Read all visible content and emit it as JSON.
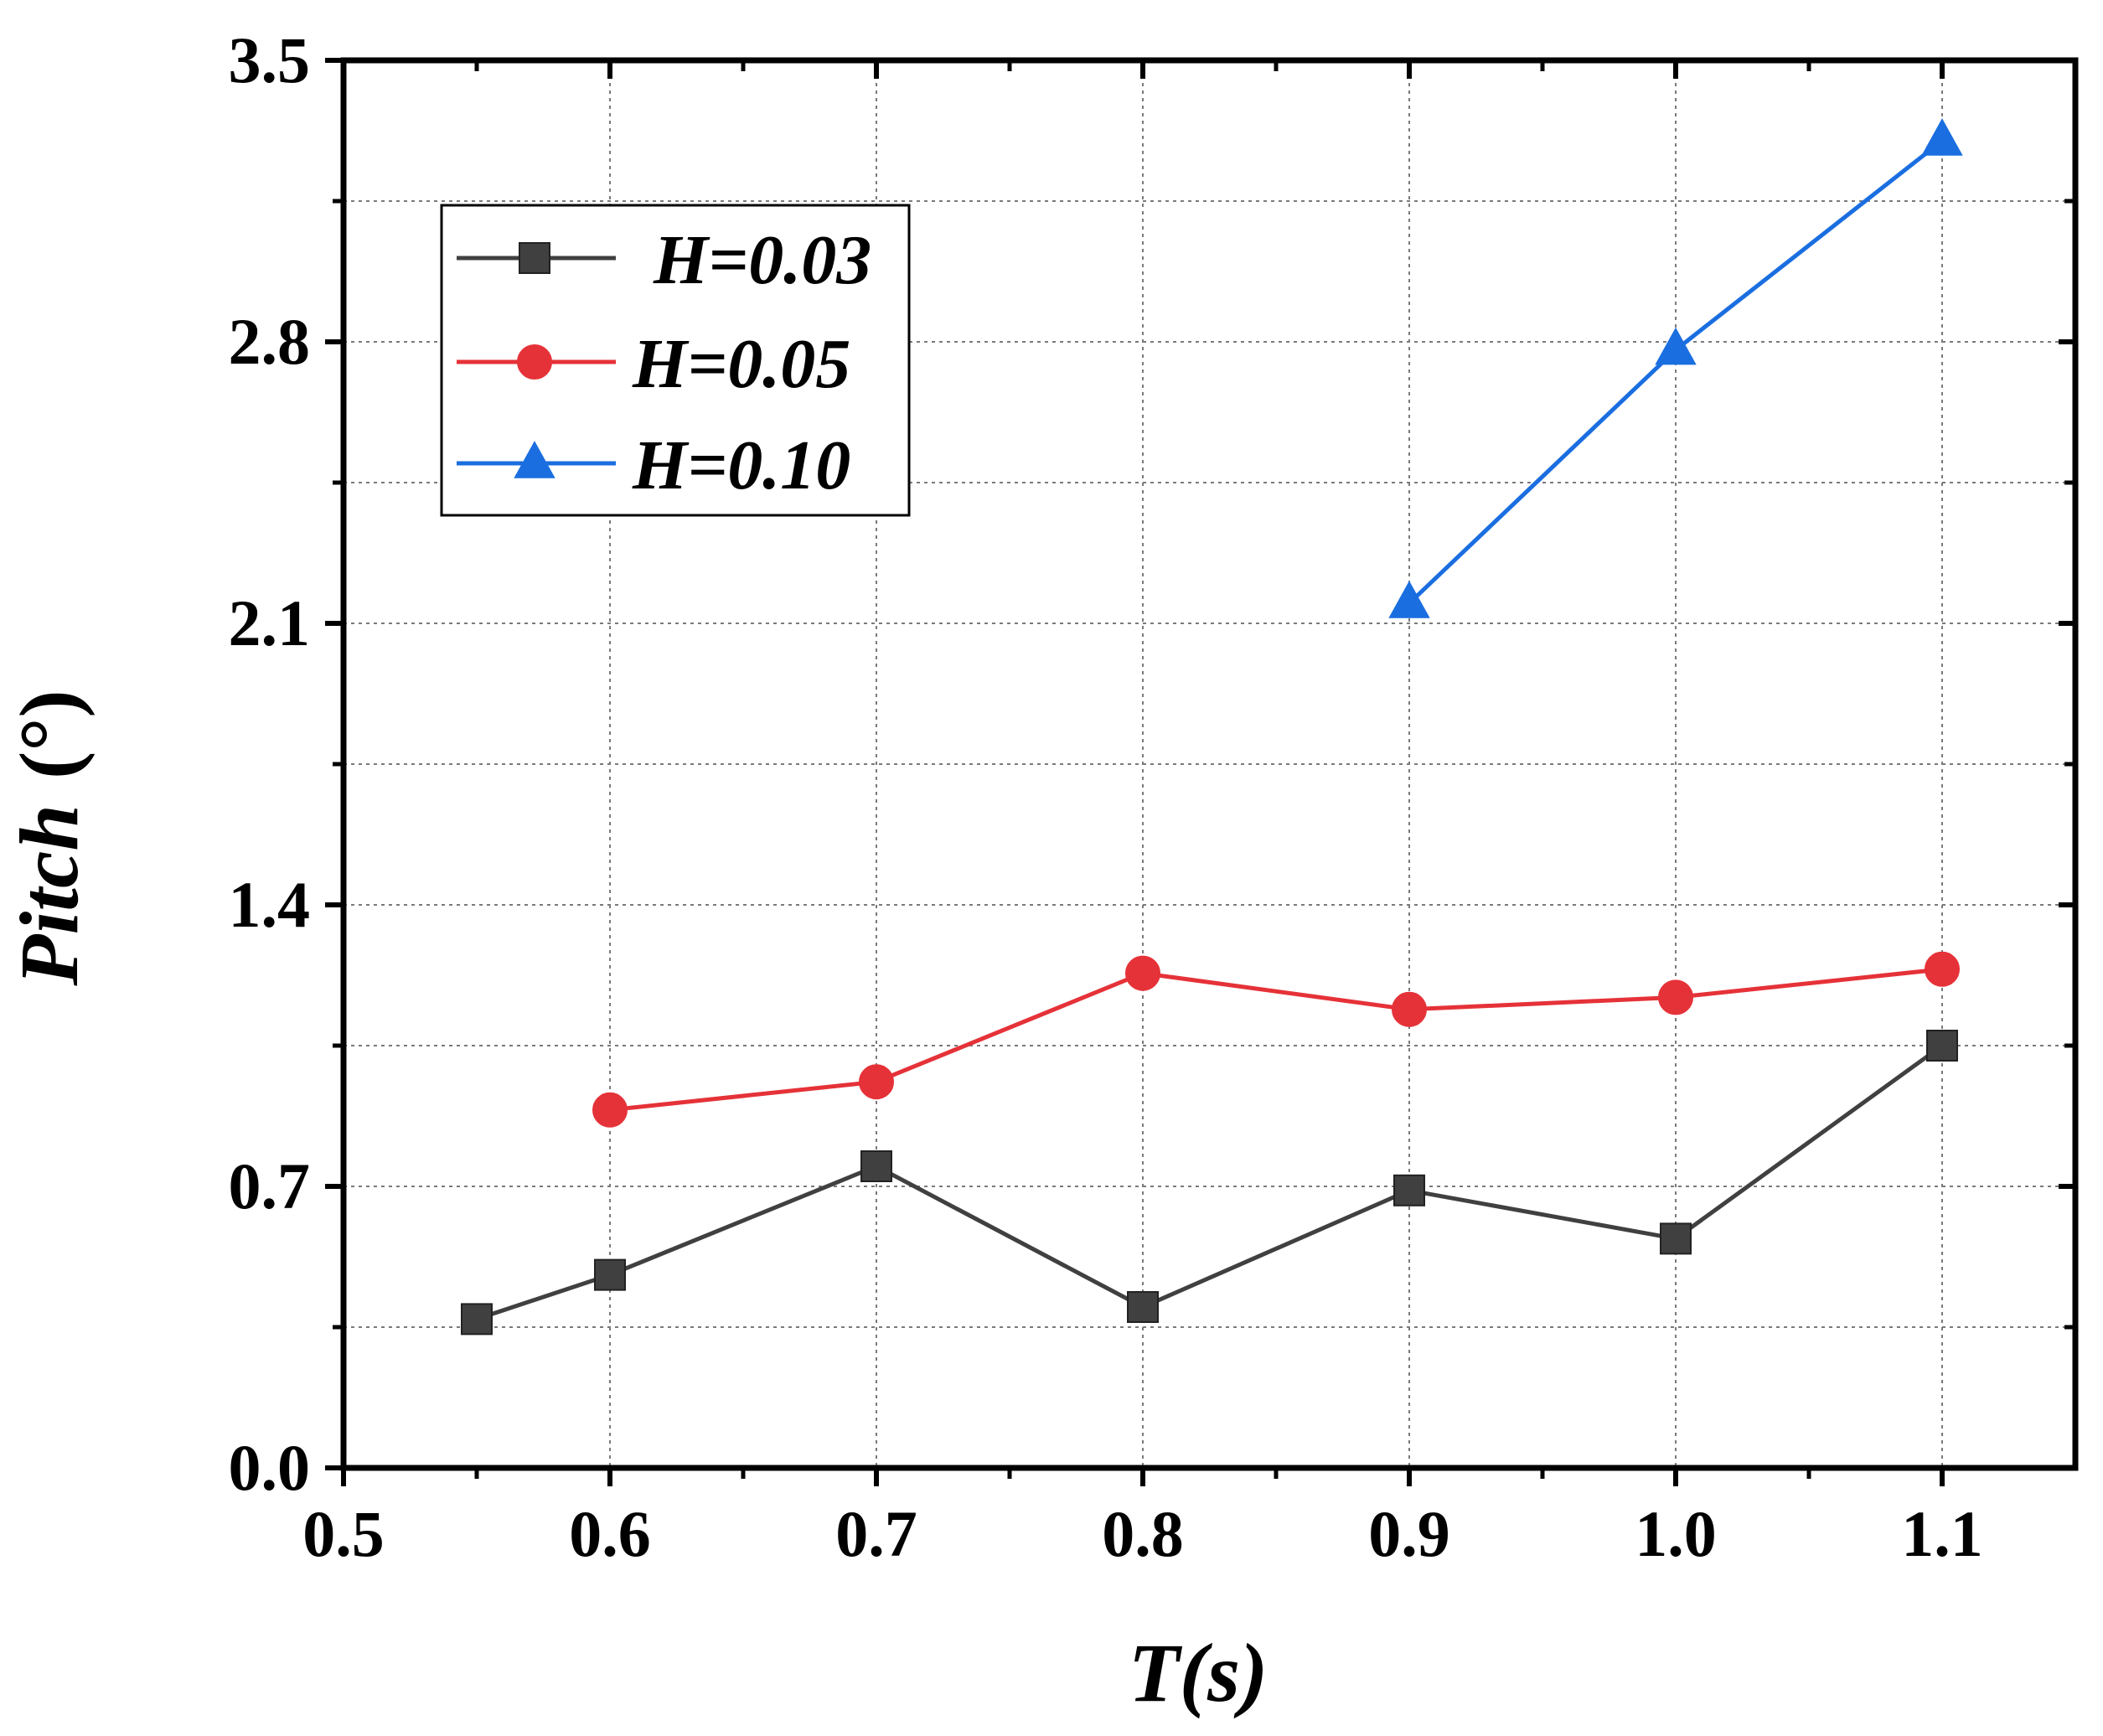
{
  "chart_data": {
    "type": "line",
    "title": "",
    "xlabel": "T(s)",
    "ylabel": "Pitch",
    "ylabel_unit": "(°)",
    "xlim": [
      0.5,
      1.15
    ],
    "ylim": [
      0.0,
      3.5
    ],
    "xticks": [
      "0.5",
      "0.6",
      "0.7",
      "0.8",
      "0.9",
      "1.0",
      "1.1"
    ],
    "yticks": [
      "0.0",
      "0.7",
      "1.4",
      "2.1",
      "2.8",
      "3.5"
    ],
    "grid": true,
    "legend_position": "top-left",
    "series": [
      {
        "name": "H=0.03",
        "color": "#404040",
        "marker": "square",
        "x": [
          0.55,
          0.6,
          0.7,
          0.8,
          0.9,
          1.0,
          1.1
        ],
        "y": [
          0.37,
          0.48,
          0.75,
          0.4,
          0.69,
          0.57,
          1.05
        ]
      },
      {
        "name": "H=0.05",
        "color": "#e53238",
        "marker": "circle",
        "x": [
          0.6,
          0.7,
          0.8,
          0.9,
          1.0,
          1.1
        ],
        "y": [
          0.89,
          0.96,
          1.23,
          1.14,
          1.17,
          1.24
        ]
      },
      {
        "name": "H=0.10",
        "color": "#1a6ee0",
        "marker": "triangle",
        "x": [
          0.9,
          1.0,
          1.1
        ],
        "y": [
          2.15,
          2.78,
          3.3
        ]
      }
    ]
  }
}
